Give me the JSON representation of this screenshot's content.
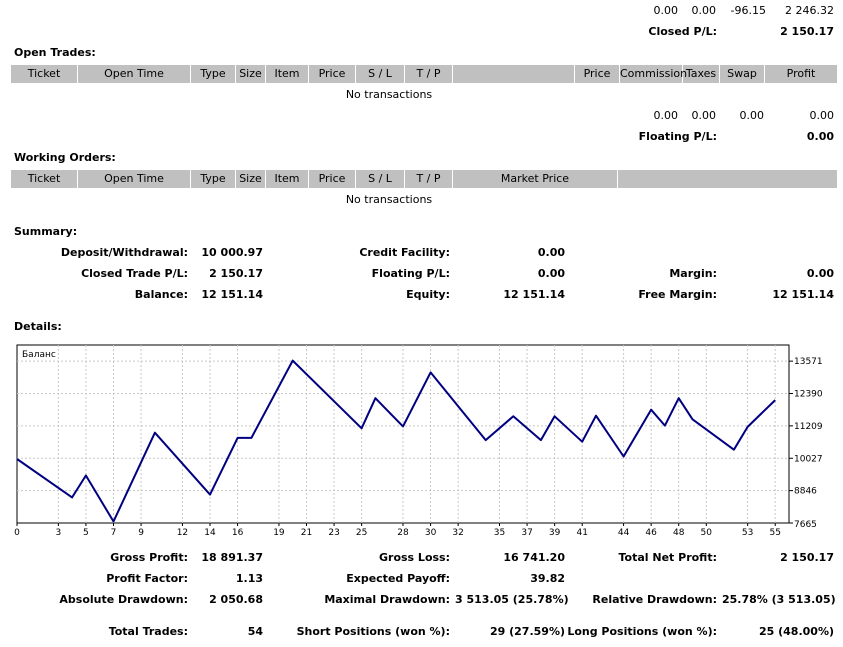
{
  "top_totals": {
    "commission": "0.00",
    "taxes": "0.00",
    "swap": "-96.15",
    "profit": "2 246.32"
  },
  "closed_pl": {
    "label": "Closed P/L:",
    "value": "2 150.17"
  },
  "open_trades": {
    "title": "Open Trades:",
    "columns": [
      "Ticket",
      "Open Time",
      "Type",
      "Size",
      "Item",
      "Price",
      "S / L",
      "T / P",
      "",
      "Price",
      "Commission",
      "Taxes",
      "Swap",
      "Profit"
    ],
    "empty": "No transactions",
    "totals": {
      "commission": "0.00",
      "taxes": "0.00",
      "swap": "0.00",
      "profit": "0.00"
    },
    "floating_label": "Floating P/L:",
    "floating_value": "0.00"
  },
  "working_orders": {
    "title": "Working Orders:",
    "columns": [
      "Ticket",
      "Open Time",
      "Type",
      "Size",
      "Item",
      "Price",
      "S / L",
      "T / P",
      "Market Price",
      ""
    ],
    "empty": "No transactions"
  },
  "summary": {
    "title": "Summary:",
    "deposit_label": "Deposit/Withdrawal:",
    "deposit_value": "10 000.97",
    "credit_label": "Credit Facility:",
    "credit_value": "0.00",
    "closed_label": "Closed Trade P/L:",
    "closed_value": "2 150.17",
    "floating_label": "Floating P/L:",
    "floating_value": "0.00",
    "margin_label": "Margin:",
    "margin_value": "0.00",
    "balance_label": "Balance:",
    "balance_value": "12 151.14",
    "equity_label": "Equity:",
    "equity_value": "12 151.14",
    "free_margin_label": "Free Margin:",
    "free_margin_value": "12 151.14"
  },
  "details": {
    "title": "Details:"
  },
  "chart_data": {
    "type": "line",
    "title": "Баланс",
    "xlim": [
      0,
      56
    ],
    "ylim": [
      7665,
      14160
    ],
    "x_ticks": [
      0,
      3,
      5,
      7,
      9,
      12,
      14,
      16,
      19,
      21,
      23,
      25,
      28,
      30,
      32,
      35,
      37,
      39,
      41,
      44,
      46,
      48,
      50,
      53,
      55
    ],
    "y_ticks": [
      7665,
      8846,
      10027,
      11209,
      12390,
      13571
    ],
    "line_color": "#000080",
    "x": [
      0,
      4,
      5,
      7,
      10,
      14,
      16,
      17,
      20,
      25,
      26,
      28,
      30,
      34,
      36,
      38,
      39,
      41,
      42,
      44,
      46,
      47,
      48,
      49,
      52,
      53,
      55
    ],
    "y": [
      10000,
      8600,
      9400,
      7720,
      10960,
      8700,
      10770,
      10770,
      13590,
      11120,
      12220,
      11190,
      13160,
      10690,
      11560,
      10690,
      11560,
      10630,
      11580,
      10090,
      11800,
      11220,
      12220,
      11450,
      10340,
      11170,
      12150
    ]
  },
  "stats": {
    "gross_profit_label": "Gross Profit:",
    "gross_profit_value": "18 891.37",
    "gross_loss_label": "Gross Loss:",
    "gross_loss_value": "16 741.20",
    "total_net_label": "Total Net Profit:",
    "total_net_value": "2 150.17",
    "profit_factor_label": "Profit Factor:",
    "profit_factor_value": "1.13",
    "expected_payoff_label": "Expected Payoff:",
    "expected_payoff_value": "39.82",
    "abs_dd_label": "Absolute Drawdown:",
    "abs_dd_value": "2 050.68",
    "max_dd_label": "Maximal Drawdown:",
    "max_dd_value": "3 513.05 (25.78%)",
    "rel_dd_label": "Relative Drawdown:",
    "rel_dd_value": "25.78% (3 513.05)",
    "total_trades_label": "Total Trades:",
    "total_trades_value": "54",
    "short_label": "Short Positions (won %):",
    "short_value": "29 (27.59%)",
    "long_label": "Long Positions (won %):",
    "long_value": "25 (48.00%)"
  }
}
